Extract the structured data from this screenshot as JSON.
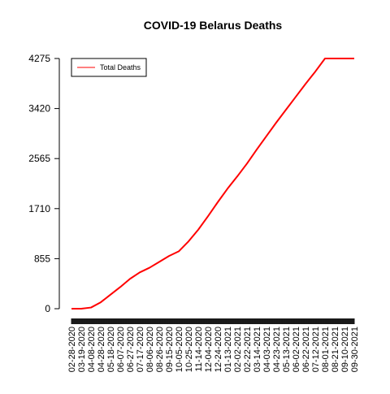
{
  "chart_data": {
    "type": "line",
    "title": "COVID-19 Belarus Deaths",
    "xlabel": "",
    "ylabel": "",
    "y_ticks": [
      0,
      855,
      1710,
      2565,
      3420,
      4275
    ],
    "ylim": [
      0,
      4275
    ],
    "x_range": [
      "2020-02-28",
      "2021-09-30"
    ],
    "x_tick_labels": [
      "02-28-2020",
      "03-19-2020",
      "04-08-2020",
      "04-28-2020",
      "05-18-2020",
      "06-07-2020",
      "06-27-2020",
      "07-17-2020",
      "08-06-2020",
      "08-26-2020",
      "09-15-2020",
      "10-05-2020",
      "10-25-2020",
      "11-14-2020",
      "12-04-2020",
      "12-24-2020",
      "01-13-2021",
      "02-02-2021",
      "02-22-2021",
      "03-14-2021",
      "04-03-2021",
      "04-23-2021",
      "05-13-2021",
      "06-02-2021",
      "06-22-2021",
      "07-12-2021",
      "08-01-2021",
      "08-21-2021",
      "09-10-2021",
      "09-30-2021"
    ],
    "grid": false,
    "legend_position": "top-left",
    "series": [
      {
        "name": "Total Deaths",
        "color": "#ff0000",
        "x": [
          "2020-02-28",
          "2020-03-19",
          "2020-04-08",
          "2020-04-28",
          "2020-05-18",
          "2020-06-07",
          "2020-06-27",
          "2020-07-17",
          "2020-08-06",
          "2020-08-26",
          "2020-09-15",
          "2020-10-05",
          "2020-10-25",
          "2020-11-14",
          "2020-12-04",
          "2020-12-24",
          "2021-01-13",
          "2021-02-02",
          "2021-02-22",
          "2021-03-14",
          "2021-04-03",
          "2021-04-23",
          "2021-05-13",
          "2021-06-02",
          "2021-06-22",
          "2021-07-12",
          "2021-08-01",
          "2021-08-21",
          "2021-09-10",
          "2021-09-30"
        ],
        "values": [
          0,
          0,
          20,
          110,
          240,
          370,
          510,
          620,
          700,
          800,
          900,
          980,
          1150,
          1350,
          1580,
          1820,
          2050,
          2260,
          2480,
          2720,
          2950,
          3180,
          3400,
          3620,
          3840,
          4050,
          4275,
          4275,
          4275,
          4275
        ]
      }
    ]
  }
}
